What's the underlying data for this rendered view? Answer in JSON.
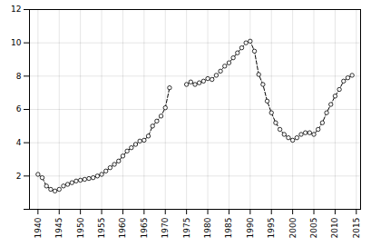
{
  "chart_data": {
    "type": "line",
    "x": [
      1940,
      1941,
      1942,
      1943,
      1944,
      1945,
      1946,
      1947,
      1948,
      1949,
      1950,
      1951,
      1952,
      1953,
      1954,
      1955,
      1956,
      1957,
      1958,
      1959,
      1960,
      1961,
      1962,
      1963,
      1964,
      1965,
      1966,
      1967,
      1968,
      1969,
      1970,
      1971,
      1972,
      1973,
      1974,
      1975,
      1976,
      1977,
      1978,
      1979,
      1980,
      1981,
      1982,
      1983,
      1984,
      1985,
      1986,
      1987,
      1988,
      1989,
      1990,
      1991,
      1992,
      1993,
      1994,
      1995,
      1996,
      1997,
      1998,
      1999,
      2000,
      2001,
      2002,
      2003,
      2004,
      2005,
      2006,
      2007,
      2008,
      2009,
      2010,
      2011,
      2012,
      2013,
      2014
    ],
    "values": [
      2.1,
      1.9,
      1.4,
      1.2,
      1.1,
      1.2,
      1.4,
      1.5,
      1.6,
      1.7,
      1.75,
      1.8,
      1.85,
      1.9,
      2.0,
      2.1,
      2.3,
      2.5,
      2.7,
      2.9,
      3.2,
      3.5,
      3.7,
      3.9,
      4.1,
      4.15,
      4.4,
      5.0,
      5.3,
      5.6,
      6.1,
      7.3,
      null,
      null,
      null,
      7.5,
      7.65,
      7.5,
      7.6,
      7.7,
      7.85,
      7.8,
      8.05,
      8.3,
      8.6,
      8.8,
      9.1,
      9.4,
      9.7,
      10.0,
      10.1,
      9.5,
      8.1,
      7.5,
      6.5,
      5.8,
      5.2,
      4.8,
      4.5,
      4.3,
      4.15,
      4.3,
      4.5,
      4.6,
      4.6,
      4.5,
      4.8,
      5.2,
      5.8,
      6.3,
      6.8,
      7.2,
      7.7,
      7.9,
      8.05
    ],
    "color": "#000000",
    "marker": "circle",
    "line_style": "dashed",
    "xlim": [
      1938,
      2016
    ],
    "xticks": [
      1940,
      1945,
      1950,
      1955,
      1960,
      1965,
      1970,
      1975,
      1980,
      1985,
      1990,
      1995,
      2000,
      2005,
      2010,
      2015
    ],
    "ylim": [
      0,
      12
    ],
    "yticks": [
      {
        "value": 0,
        "label": null
      },
      2,
      4,
      6,
      8,
      10,
      12
    ],
    "grid": true
  }
}
